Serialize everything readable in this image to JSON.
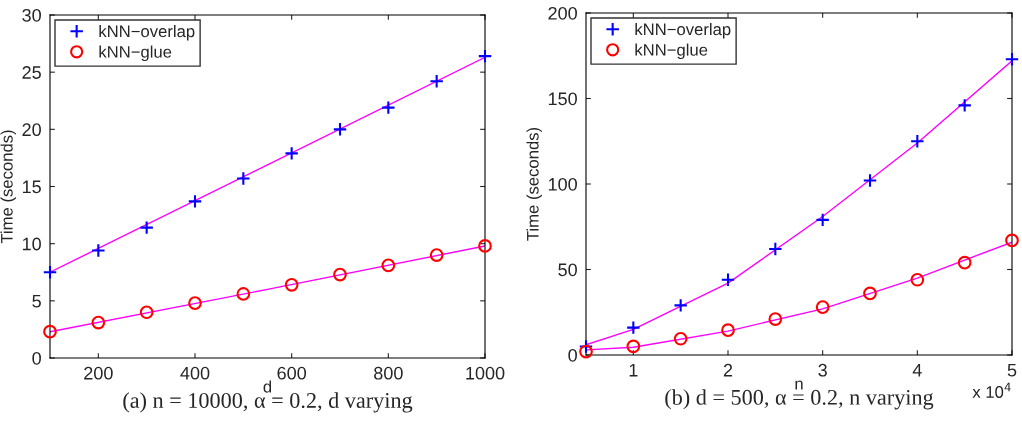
{
  "chart_data": [
    {
      "type": "scatter",
      "xlabel": "d",
      "ylabel": "Time (seconds)",
      "annotations": [
        "(a) n = 10000, α = 0.2, d varying"
      ],
      "xlim": [
        100,
        1000
      ],
      "xticks": [
        200,
        400,
        600,
        800,
        1000
      ],
      "ylim": [
        0,
        30
      ],
      "yticks": [
        0,
        5,
        10,
        15,
        20,
        25,
        30
      ],
      "grid": false,
      "legend": "top left",
      "series": [
        {
          "type": "line",
          "color": "#ff00ff",
          "marker": "none",
          "line_style": "solid",
          "x": [
            100,
            550,
            1000
          ],
          "values": [
            7.5,
            16.9,
            26.3
          ]
        },
        {
          "type": "line",
          "color": "#ff00ff",
          "marker": "none",
          "line_style": "solid",
          "x": [
            100,
            550,
            1000
          ],
          "values": [
            2.3,
            6.0,
            9.8
          ]
        },
        {
          "name": "kNN−overlap",
          "color": "#0000ff",
          "marker": "cross",
          "x": [
            100,
            200,
            300,
            400,
            500,
            600,
            700,
            800,
            900,
            1000
          ],
          "values": [
            7.5,
            9.4,
            11.4,
            13.7,
            15.7,
            17.9,
            20.0,
            21.9,
            24.2,
            26.4
          ]
        },
        {
          "name": "kNN−glue",
          "color": "#ff0000",
          "marker": "circle",
          "x": [
            100,
            200,
            300,
            400,
            500,
            600,
            700,
            800,
            900,
            1000
          ],
          "values": [
            2.3,
            3.1,
            4.0,
            4.8,
            5.6,
            6.4,
            7.3,
            8.1,
            9.0,
            9.8
          ]
        }
      ]
    },
    {
      "type": "scatter",
      "xlabel": "n",
      "ylabel": "Time (seconds)",
      "annotations": [
        "x 10$^{4}$",
        "(b) d = 500, α = 0.2, n varying"
      ],
      "xlim": [
        0.5,
        5
      ],
      "xticks": [
        1,
        2,
        3,
        4,
        5
      ],
      "ylim": [
        0,
        200
      ],
      "yticks": [
        0,
        50,
        100,
        150,
        200
      ],
      "grid": false,
      "legend": "top left",
      "series": [
        {
          "type": "line",
          "color": "#ff00ff",
          "marker": "none",
          "line_style": "solid",
          "x": [
            0.5,
            1,
            2,
            3,
            4,
            5
          ],
          "values": [
            6,
            15,
            42,
            81,
            124,
            172
          ]
        },
        {
          "type": "line",
          "color": "#ff00ff",
          "marker": "none",
          "line_style": "solid",
          "x": [
            0.5,
            1,
            2,
            3,
            4,
            5
          ],
          "values": [
            3,
            4.5,
            14,
            27,
            45,
            66
          ]
        },
        {
          "name": "kNN−overlap",
          "color": "#0000ff",
          "marker": "cross",
          "x": [
            0.5,
            1,
            1.5,
            2,
            2.5,
            3,
            3.5,
            4,
            4.5,
            5
          ],
          "values": [
            5,
            16,
            29,
            44,
            62,
            79,
            102,
            125,
            146,
            173
          ]
        },
        {
          "name": "kNN−glue",
          "color": "#ff0000",
          "marker": "circle",
          "x": [
            0.5,
            1,
            1.5,
            2,
            2.5,
            3,
            3.5,
            4,
            4.5,
            5
          ],
          "values": [
            2,
            5,
            9.5,
            14.5,
            21,
            28,
            36,
            44,
            54,
            67
          ]
        }
      ]
    }
  ]
}
